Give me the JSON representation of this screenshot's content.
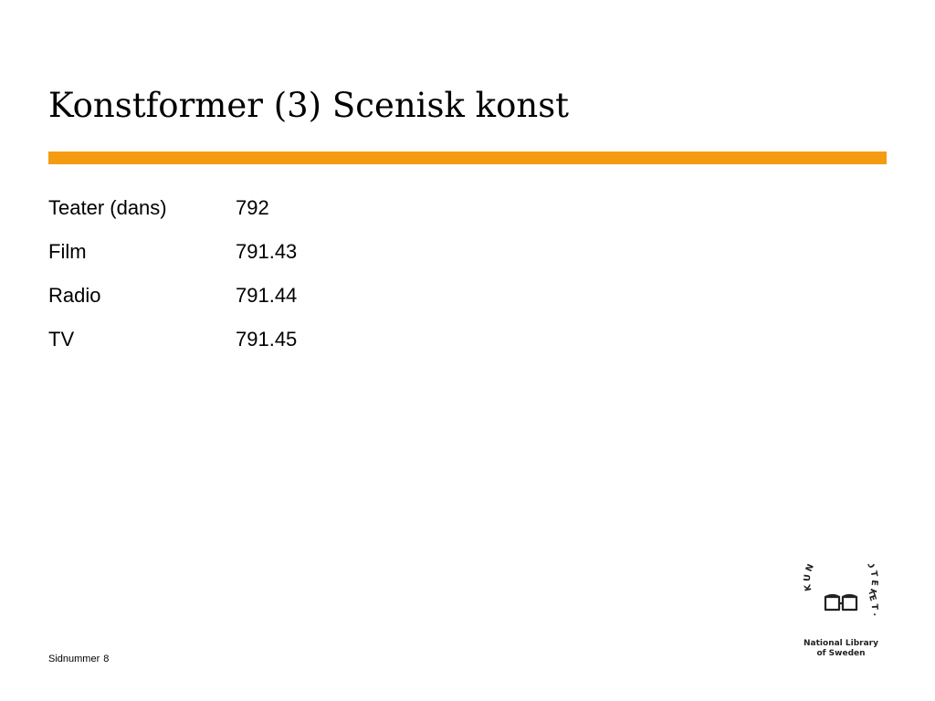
{
  "title": "Konstformer (3) Scenisk konst",
  "entries": [
    {
      "term": "Teater (dans)",
      "code": "792"
    },
    {
      "term": "Film",
      "code": "791.43"
    },
    {
      "term": "Radio",
      "code": "791.44"
    },
    {
      "term": "TV",
      "code": "791.45"
    }
  ],
  "footer": {
    "label": "Sidnummer",
    "page_number": "8"
  },
  "logo": {
    "emblem_text": "KUNGL·BIBLIOTEKET·",
    "subtitle_line1": "National Library",
    "subtitle_line2": "of Sweden",
    "icon": "book-emblem-icon"
  },
  "colors": {
    "accent_rule": "#f39c12",
    "text": "#000000"
  }
}
